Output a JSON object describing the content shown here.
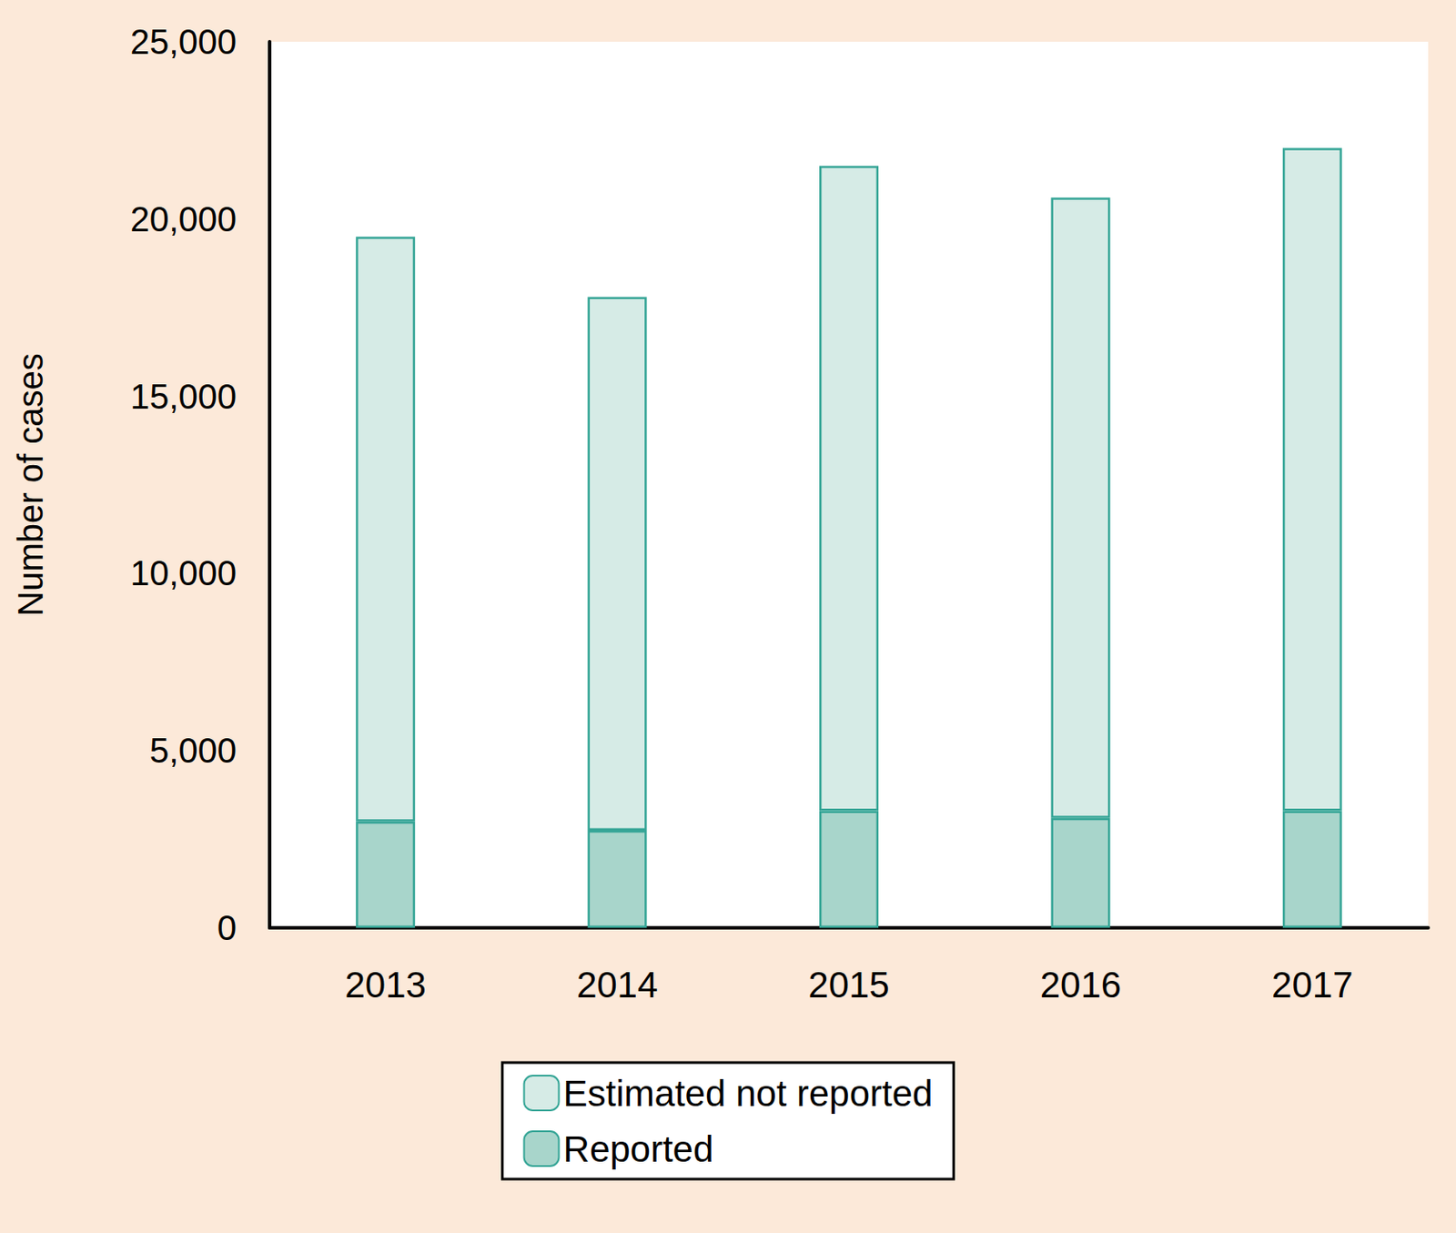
{
  "chart_data": {
    "type": "bar",
    "stacked": true,
    "y_label": "Number of cases",
    "categories": [
      "2013",
      "2014",
      "2015",
      "2016",
      "2017"
    ],
    "series": [
      {
        "name": "Reported",
        "color": "#a8d5cb",
        "values": [
          3000,
          2750,
          3300,
          3100,
          3300
        ]
      },
      {
        "name": "Estimated not reported",
        "color": "#d6ebe6",
        "values": [
          16500,
          15050,
          18200,
          17500,
          18700
        ]
      }
    ],
    "ylim": [
      0,
      25000
    ],
    "yticks": [
      0,
      {
        "value": 5000,
        "label": "5,000"
      },
      {
        "value": 10000,
        "label": "10,000"
      },
      {
        "value": 15000,
        "label": "15,000"
      },
      {
        "value": 20000,
        "label": "20,000"
      },
      {
        "value": 25000,
        "label": "25,000"
      }
    ],
    "grid": false,
    "legend": "bottom"
  }
}
